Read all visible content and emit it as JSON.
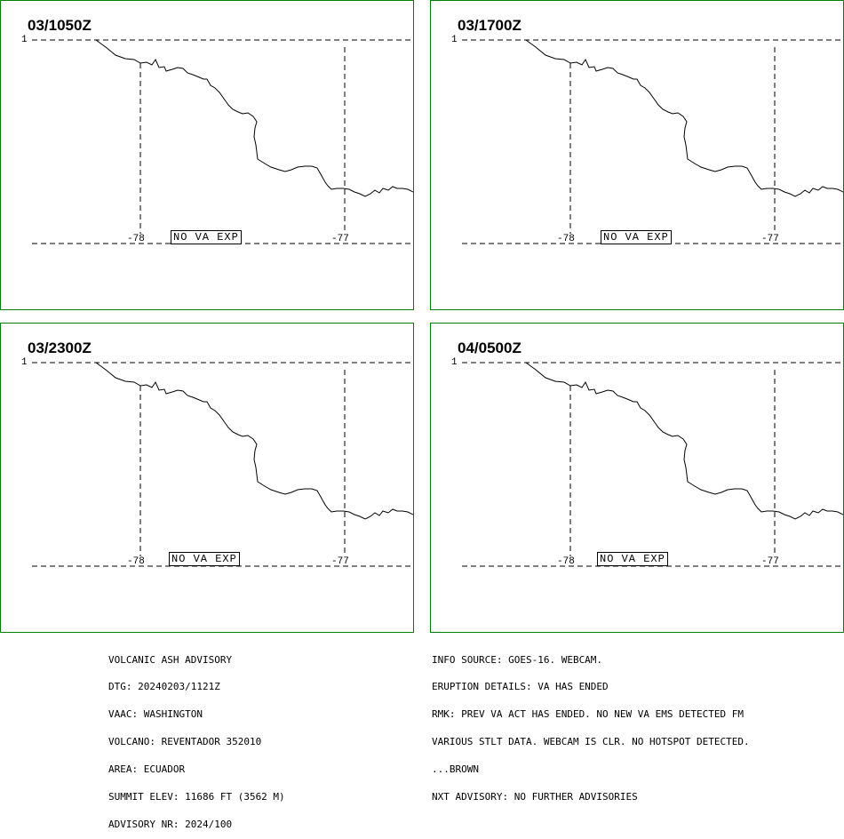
{
  "panels": [
    {
      "time": "03/1050Z",
      "lat_label": "1",
      "lon_labels": [
        "-78",
        "-77"
      ],
      "status": "NO VA EXP"
    },
    {
      "time": "03/1700Z",
      "lat_label": "1",
      "lon_labels": [
        "-78",
        "-77"
      ],
      "status": "NO VA EXP"
    },
    {
      "time": "03/2300Z",
      "lat_label": "1",
      "lon_labels": [
        "-78",
        "-77"
      ],
      "status": "NO VA EXP"
    },
    {
      "time": "04/0500Z",
      "lat_label": "1",
      "lon_labels": [
        "-78",
        "-77"
      ],
      "status": "NO VA EXP"
    }
  ],
  "advisory_left": [
    "VOLCANIC ASH ADVISORY",
    "DTG: 20240203/1121Z",
    "VAAC: WASHINGTON",
    "VOLCANO: REVENTADOR 352010",
    "AREA: ECUADOR",
    "SUMMIT ELEV: 11686 FT (3562 M)",
    "ADVISORY NR: 2024/100"
  ],
  "advisory_right": [
    "INFO SOURCE: GOES-16. WEBCAM.",
    "ERUPTION DETAILS: VA HAS ENDED",
    "RMK: PREV VA ACT HAS ENDED. NO NEW VA EMS DETECTED FM",
    "VARIOUS STLT DATA. WEBCAM IS CLR. NO HOTSPOT DETECTED.",
    "...BROWN",
    "NXT ADVISORY: NO FURTHER ADVISORIES"
  ],
  "colors": {
    "panel_border": "#008000",
    "map_line": "#000000"
  }
}
